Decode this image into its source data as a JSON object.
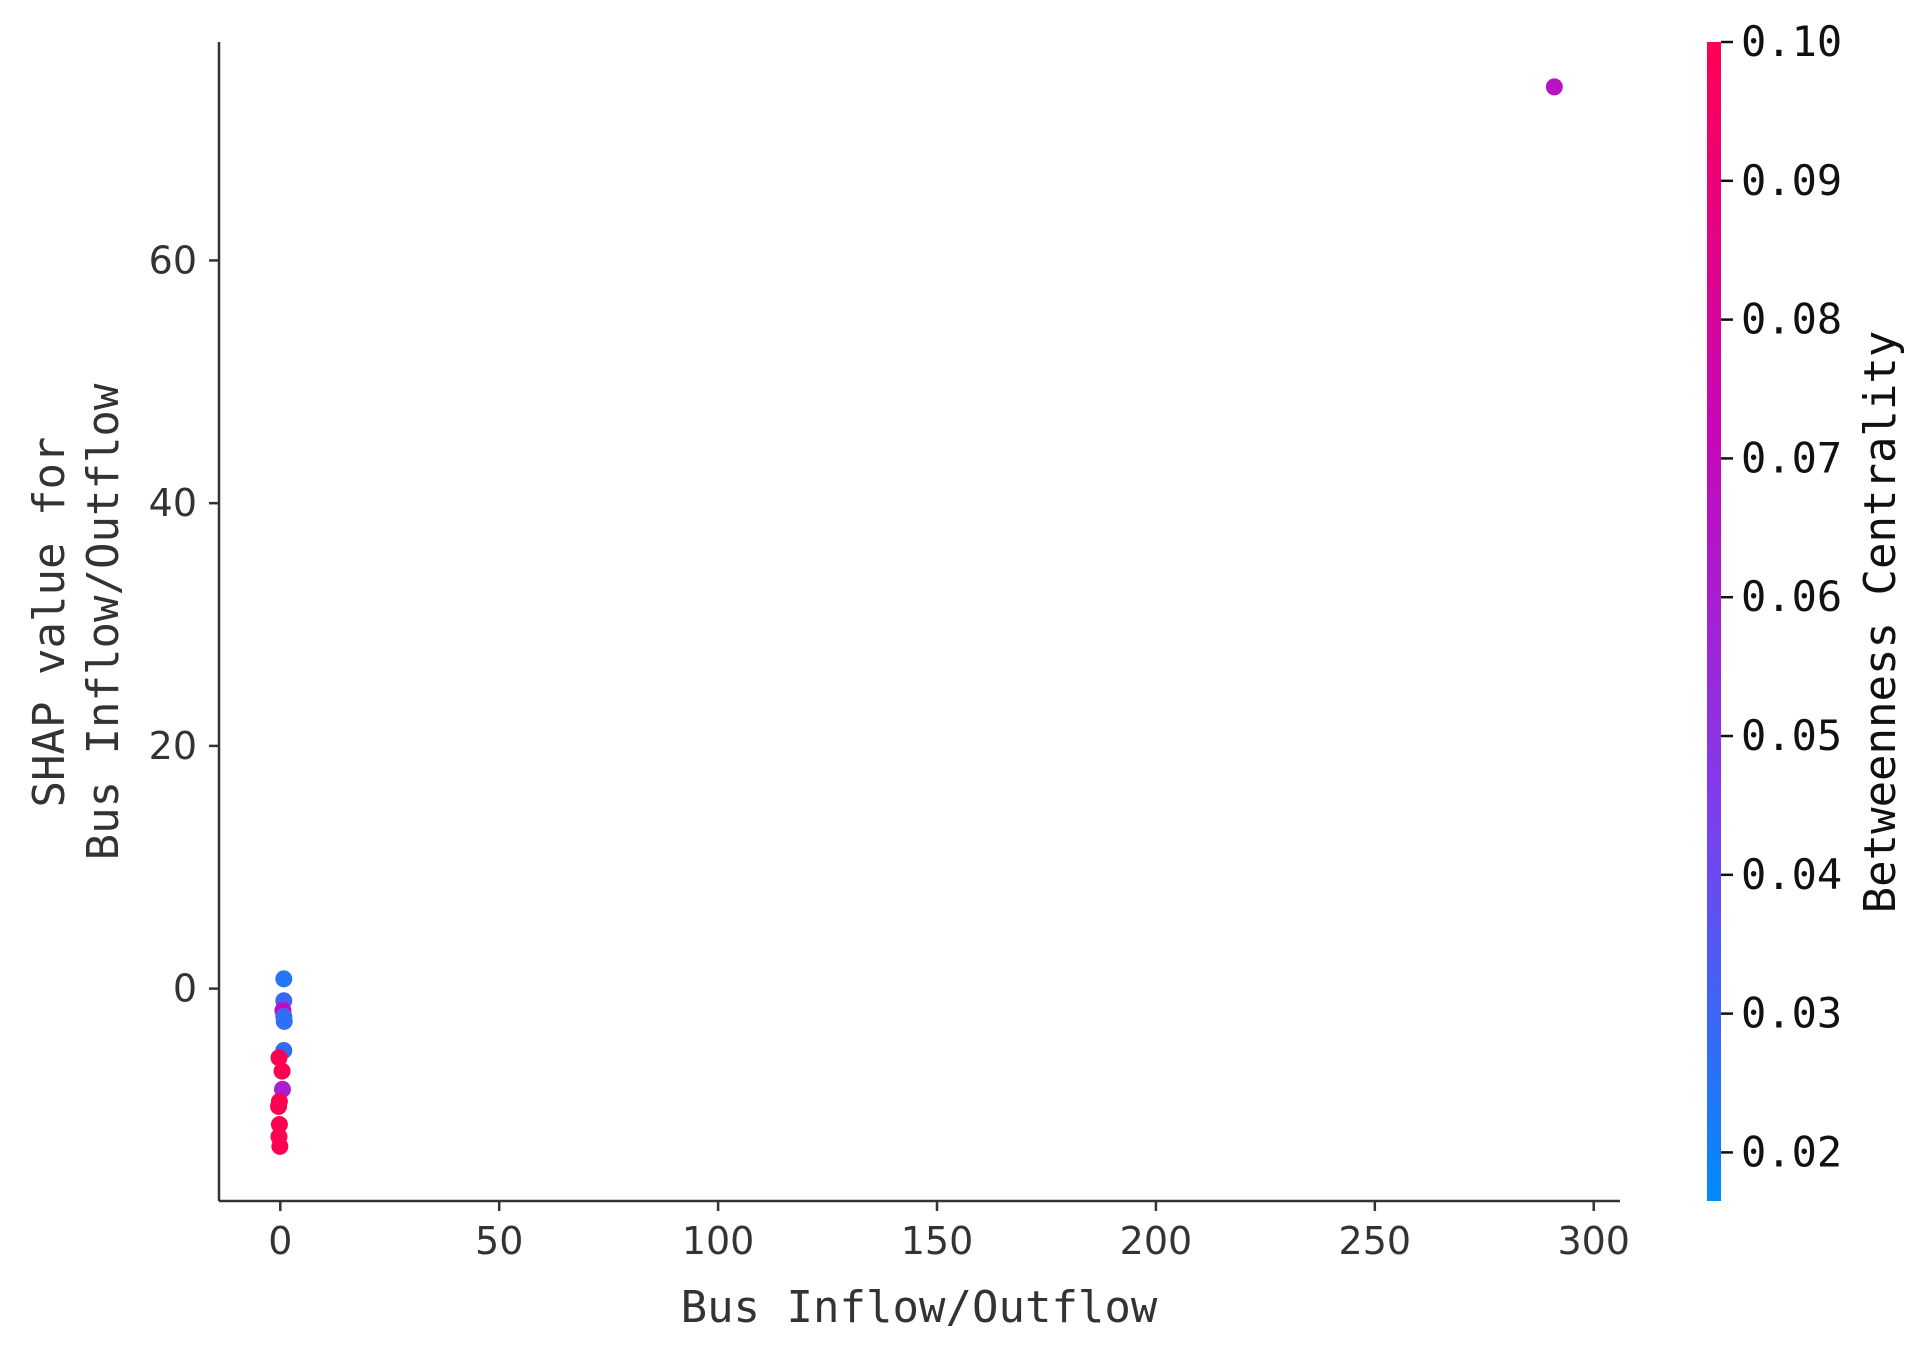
{
  "chart_data": {
    "type": "scatter",
    "xlabel": "Bus Inflow/Outflow",
    "ylabel_lines": [
      "SHAP value for",
      "Bus Inflow/Outflow"
    ],
    "xlim": [
      -14,
      306
    ],
    "ylim": [
      -17.5,
      78
    ],
    "x_ticks": [
      0,
      50,
      100,
      150,
      200,
      250,
      300
    ],
    "y_ticks": [
      0,
      20,
      40,
      60
    ],
    "colorbar": {
      "label": "Betweenness Centrality",
      "range": [
        0.0165,
        0.1
      ],
      "ticks": [
        "0.02",
        "0.03",
        "0.04",
        "0.05",
        "0.06",
        "0.07",
        "0.08",
        "0.09",
        "0.10"
      ],
      "colors": [
        "#008bfb",
        "#7c3ff0",
        "#c707b9",
        "#ff0052"
      ]
    },
    "points": [
      {
        "x": 291,
        "y": 74.3,
        "c": 0.066
      },
      {
        "x": 0.8,
        "y": 0.8,
        "c": 0.025
      },
      {
        "x": 0.8,
        "y": -1.0,
        "c": 0.03
      },
      {
        "x": 0.6,
        "y": -1.8,
        "c": 0.07
      },
      {
        "x": 0.8,
        "y": -2.3,
        "c": 0.03
      },
      {
        "x": 0.9,
        "y": -2.7,
        "c": 0.027
      },
      {
        "x": 0.8,
        "y": -5.1,
        "c": 0.028
      },
      {
        "x": -0.3,
        "y": -5.7,
        "c": 0.1
      },
      {
        "x": 0.4,
        "y": -6.8,
        "c": 0.1
      },
      {
        "x": 0.5,
        "y": -8.3,
        "c": 0.06
      },
      {
        "x": -0.2,
        "y": -9.3,
        "c": 0.1
      },
      {
        "x": -0.4,
        "y": -9.7,
        "c": 0.1
      },
      {
        "x": -0.2,
        "y": -11.2,
        "c": 0.1
      },
      {
        "x": -0.3,
        "y": -12.2,
        "c": 0.1
      },
      {
        "x": -0.1,
        "y": -13.0,
        "c": 0.1
      }
    ]
  }
}
